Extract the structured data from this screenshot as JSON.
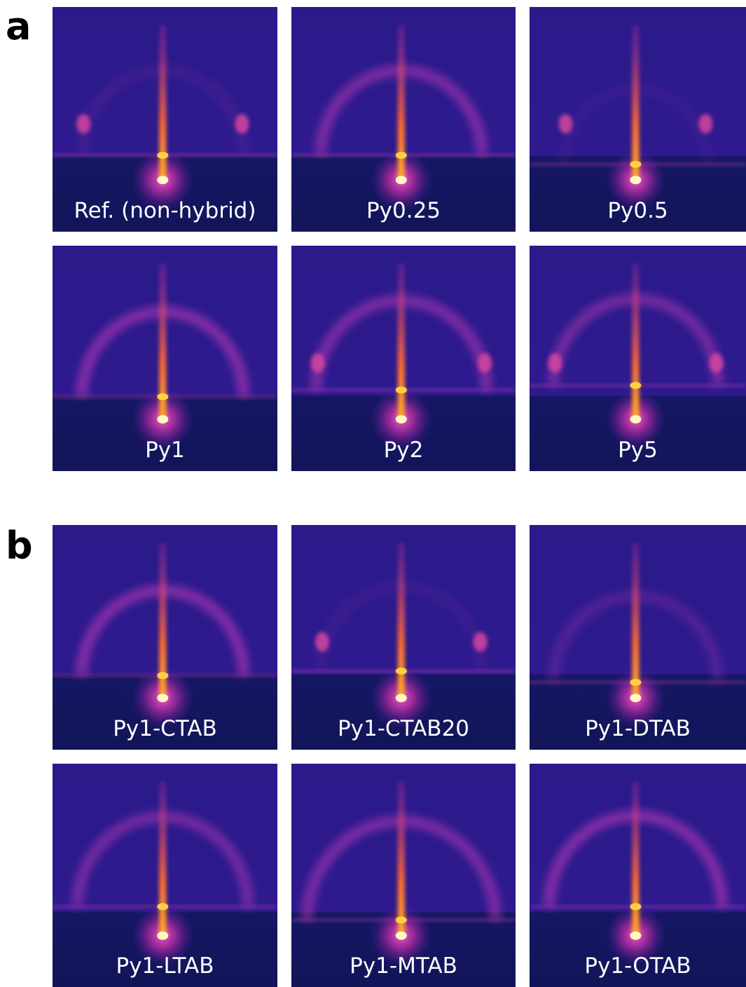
{
  "panels": [
    {
      "label": "a",
      "images": [
        {
          "label": "Ref. (non-hybrid)"
        },
        {
          "label": "Py0.25"
        },
        {
          "label": "Py0.5"
        },
        {
          "label": "Py1"
        },
        {
          "label": "Py2"
        },
        {
          "label": "Py5"
        }
      ]
    },
    {
      "label": "b",
      "images": [
        {
          "label": "Py1-CTAB"
        },
        {
          "label": "Py1-CTAB20"
        },
        {
          "label": "Py1-DTAB"
        },
        {
          "label": "Py1-LTAB"
        },
        {
          "label": "Py1-MTAB"
        },
        {
          "label": "Py1-OTAB"
        }
      ]
    }
  ]
}
